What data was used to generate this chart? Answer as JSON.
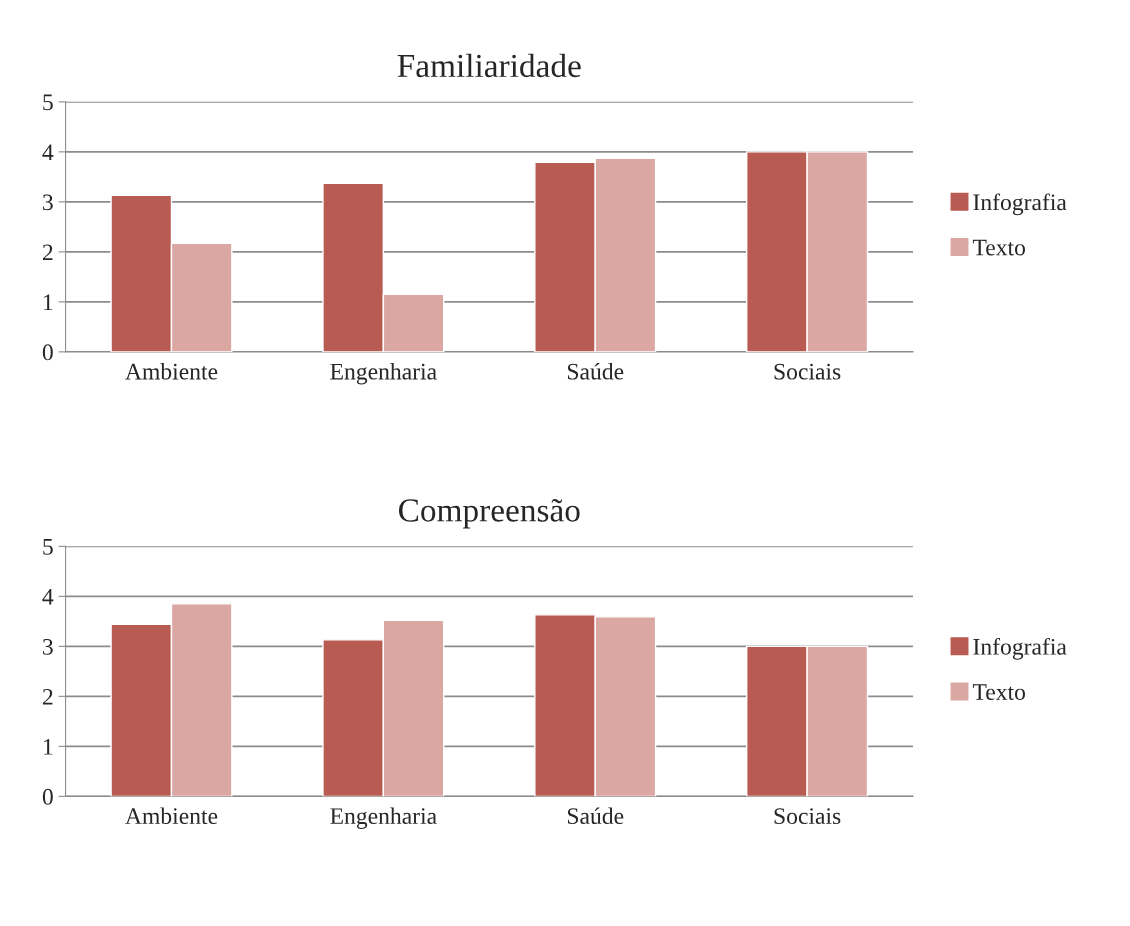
{
  "chart_data": [
    {
      "type": "bar",
      "title": "Familiaridade",
      "categories": [
        "Ambiente",
        "Engenharia",
        "Saúde",
        "Sociais"
      ],
      "series": [
        {
          "name": "Infografia",
          "color": "#b85b53",
          "values": [
            3.13,
            3.37,
            3.79,
            4.0
          ]
        },
        {
          "name": "Texto",
          "color": "#dba7a2",
          "values": [
            2.17,
            1.15,
            3.87,
            4.0
          ]
        }
      ],
      "ylim": [
        0,
        5
      ],
      "yticks": [
        0,
        1,
        2,
        3,
        4,
        5
      ],
      "grid": "y",
      "legend": "right"
    },
    {
      "type": "bar",
      "title": "Compreensão",
      "categories": [
        "Ambiente",
        "Engenharia",
        "Saúde",
        "Sociais"
      ],
      "series": [
        {
          "name": "Infografia",
          "color": "#b85b53",
          "values": [
            3.44,
            3.13,
            3.63,
            3.0
          ]
        },
        {
          "name": "Texto",
          "color": "#dba7a2",
          "values": [
            3.85,
            3.52,
            3.59,
            3.0
          ]
        }
      ],
      "ylim": [
        0,
        5
      ],
      "yticks": [
        0,
        1,
        2,
        3,
        4,
        5
      ],
      "grid": "y",
      "legend": "right"
    }
  ]
}
